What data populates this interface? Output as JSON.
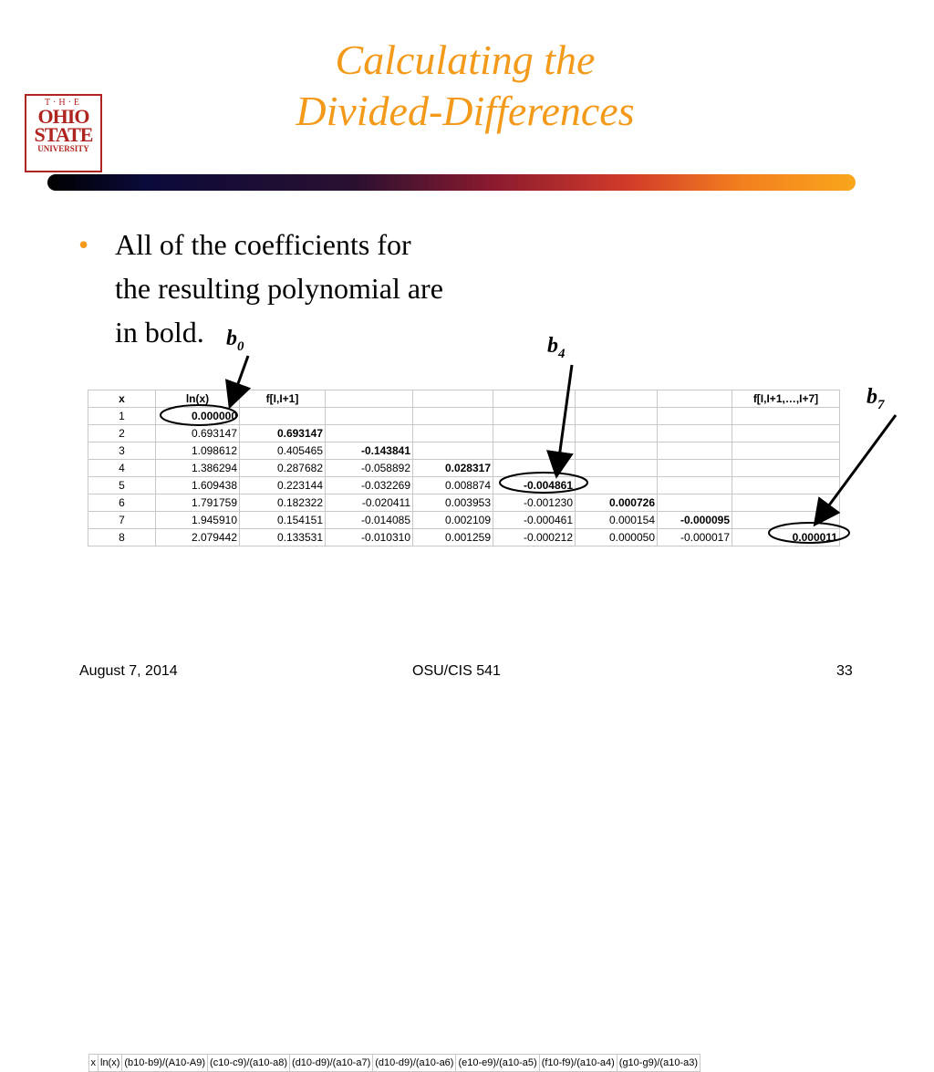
{
  "slide": {
    "title_line1": "Calculating the",
    "title_line2": "Divided-Differences",
    "bullet": "All of the coefficients for the resulting polynomial are in bold.",
    "logo": {
      "the": "T·H·E",
      "ohio": "OHIO",
      "state": "STATE",
      "university": "UNIVERSITY"
    },
    "labels": {
      "b0": "b",
      "b0_sub": "0",
      "b4": "b",
      "b4_sub": "4",
      "b7": "b",
      "b7_sub": "7"
    }
  },
  "table": {
    "header": [
      "x",
      "ln(x)",
      "f[I,I+1]",
      "",
      "",
      "",
      "",
      "",
      "f[I,I+1,…,I+7]"
    ],
    "rows": [
      [
        "1",
        "0.000000",
        "",
        "",
        "",
        "",
        "",
        "",
        ""
      ],
      [
        "2",
        "0.693147",
        "0.693147",
        "",
        "",
        "",
        "",
        "",
        ""
      ],
      [
        "3",
        "1.098612",
        "0.405465",
        "-0.143841",
        "",
        "",
        "",
        "",
        ""
      ],
      [
        "4",
        "1.386294",
        "0.287682",
        "-0.058892",
        "0.028317",
        "",
        "",
        "",
        ""
      ],
      [
        "5",
        "1.609438",
        "0.223144",
        "-0.032269",
        "0.008874",
        "-0.004861",
        "",
        "",
        ""
      ],
      [
        "6",
        "1.791759",
        "0.182322",
        "-0.020411",
        "0.003953",
        "-0.001230",
        "0.000726",
        "",
        ""
      ],
      [
        "7",
        "1.945910",
        "0.154151",
        "-0.014085",
        "0.002109",
        "-0.000461",
        "0.000154",
        "-0.000095",
        ""
      ],
      [
        "8",
        "2.079442",
        "0.133531",
        "-0.010310",
        "0.001259",
        "-0.000212",
        "0.000050",
        "-0.000017",
        "0.000011"
      ]
    ],
    "bold_cells": [
      "0-1",
      "1-2",
      "2-3",
      "3-4",
      "4-5",
      "5-6",
      "6-7",
      "7-8"
    ],
    "footer": [
      "x",
      "ln(x)",
      "(b10-b9)/(A10-A9)",
      "(c10-c9)/(a10-a8)",
      "(d10-d9)/(a10-a7)",
      "(d10-d9)/(a10-a6)",
      "(e10-e9)/(a10-a5)",
      "(f10-f9)/(a10-a4)",
      "(g10-g9)/(a10-a3)"
    ]
  },
  "footer": {
    "date": "August 7, 2014",
    "course": "OSU/CIS 541",
    "page": "33"
  }
}
